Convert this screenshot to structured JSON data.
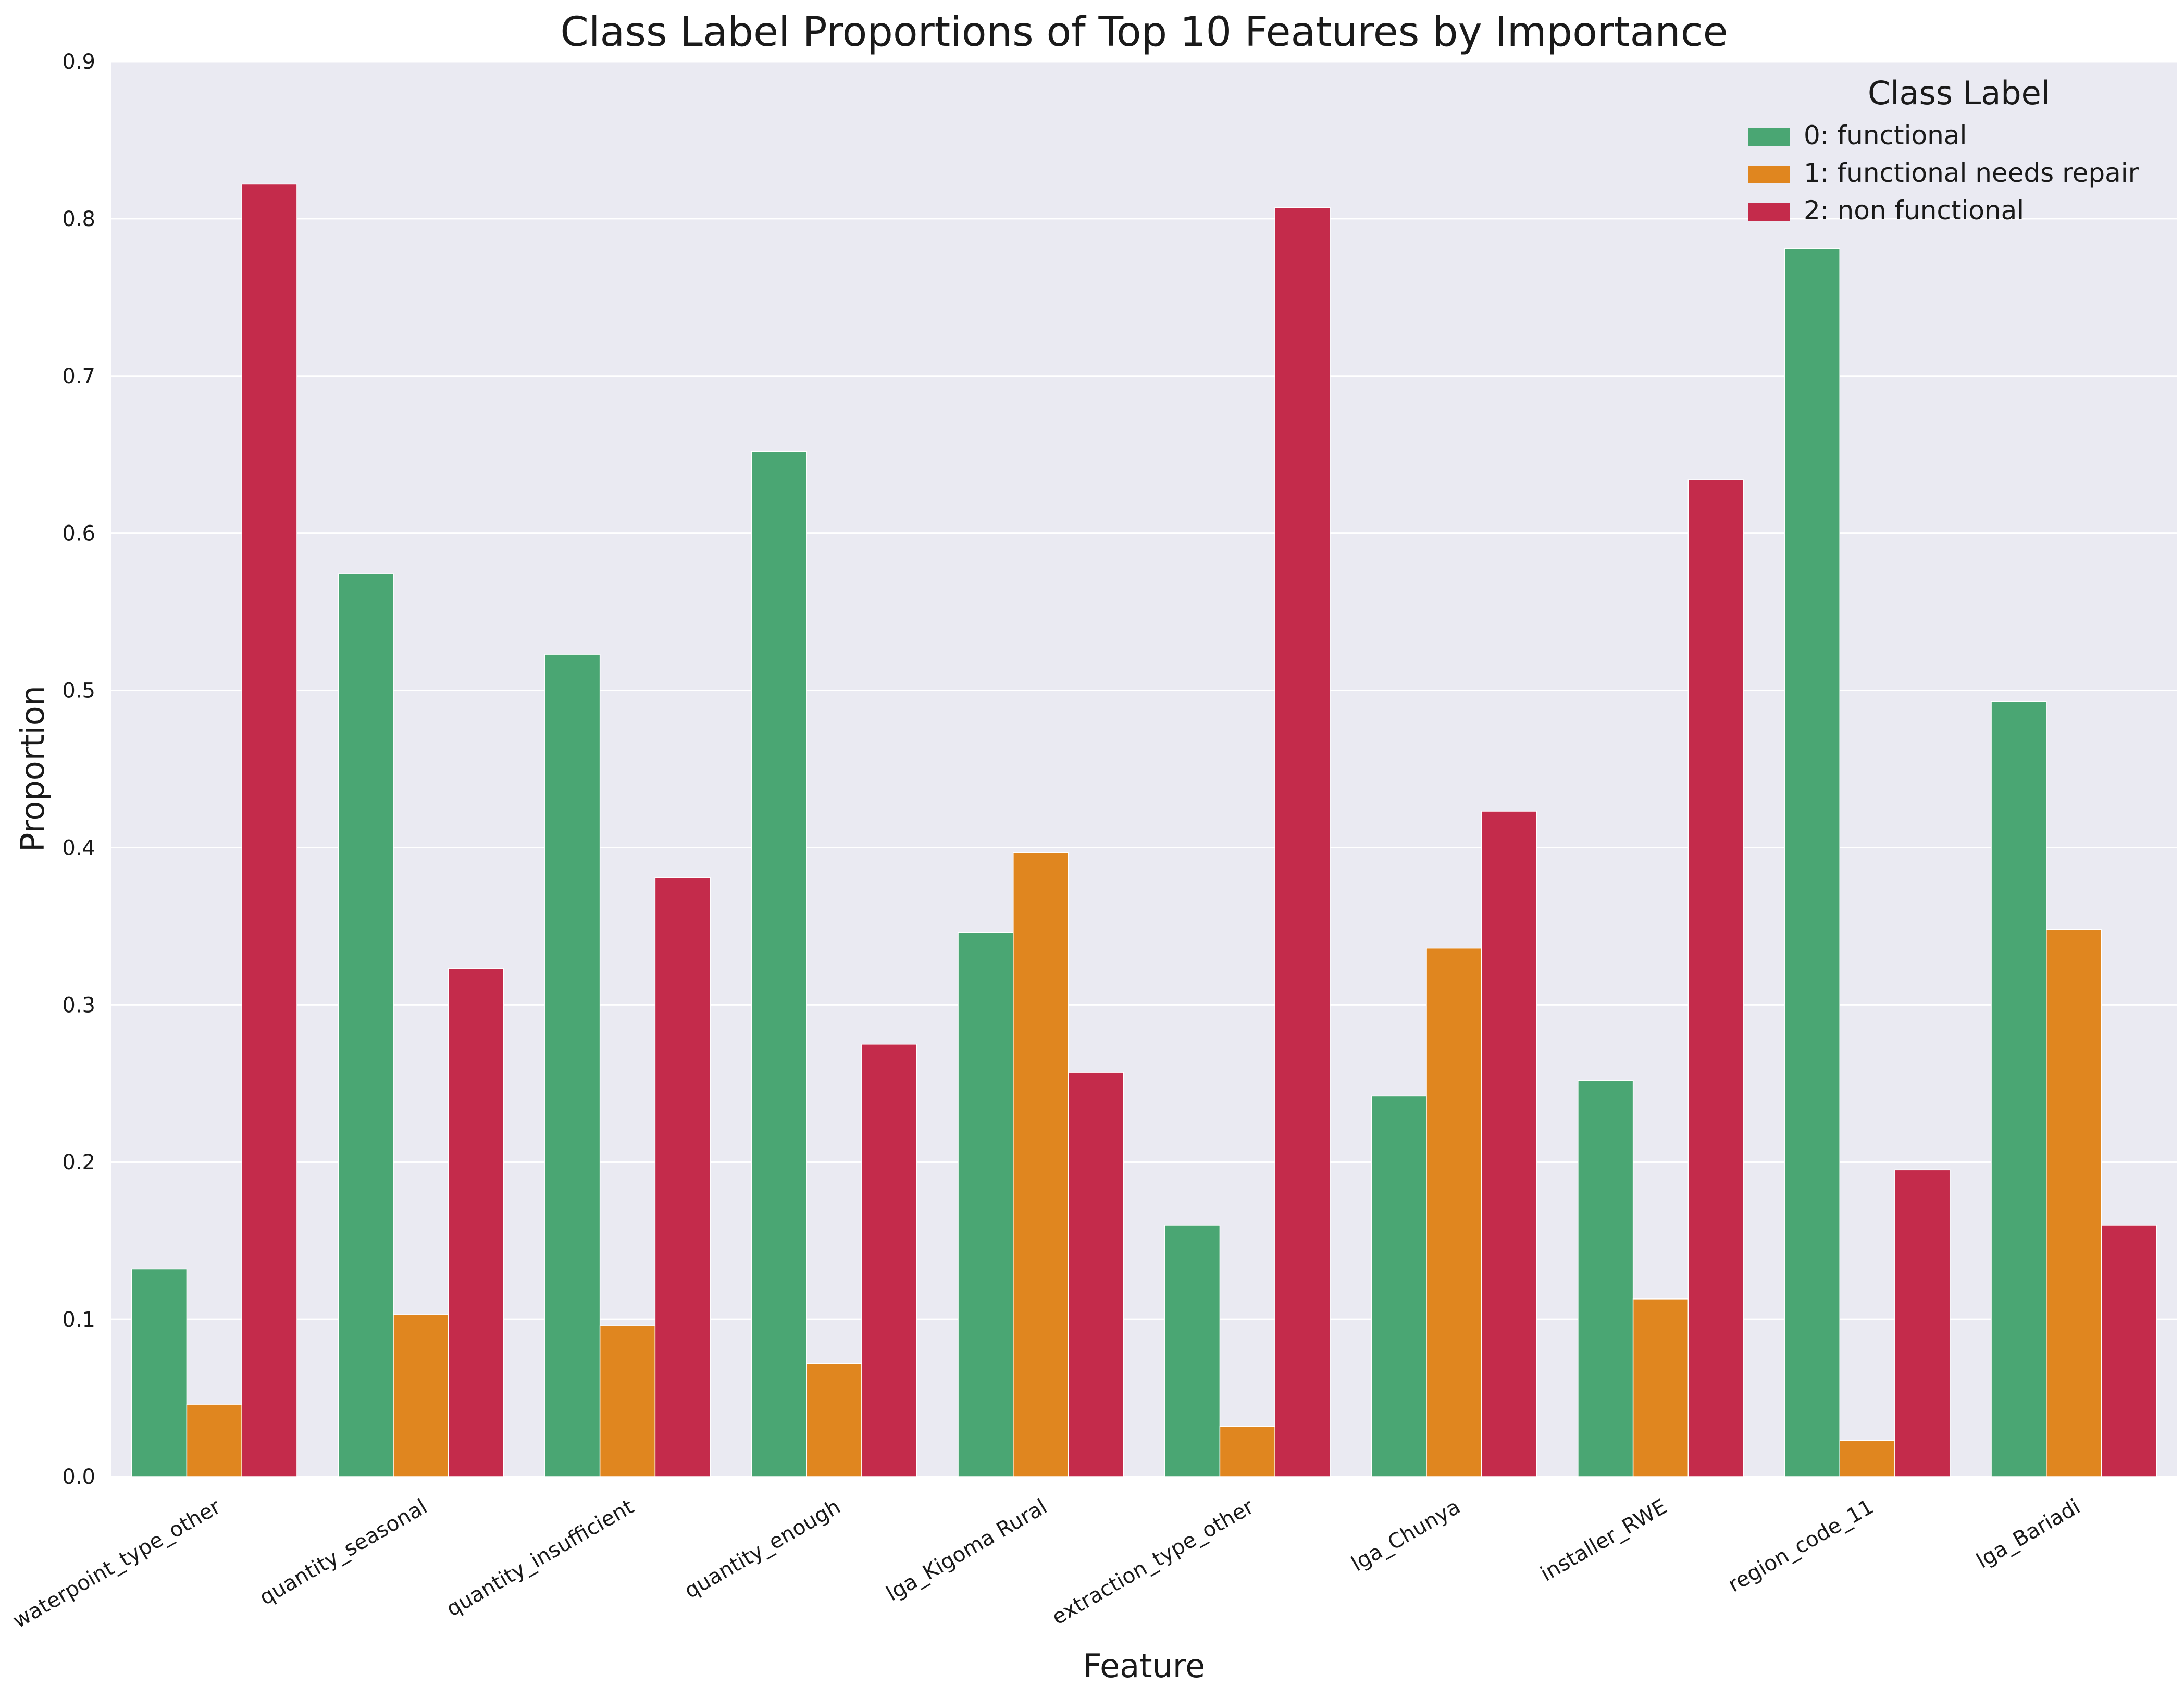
{
  "chart_data": {
    "type": "bar",
    "title": "Class Label Proportions of Top 10 Features by Importance",
    "xlabel": "Feature",
    "ylabel": "Proportion",
    "ylim": [
      0,
      0.9
    ],
    "yticks": [
      0.0,
      0.1,
      0.2,
      0.3,
      0.4,
      0.5,
      0.6,
      0.7,
      0.8,
      0.9
    ],
    "ytick_labels": [
      "0.0",
      "0.1",
      "0.2",
      "0.3",
      "0.4",
      "0.5",
      "0.6",
      "0.7",
      "0.8",
      "0.9"
    ],
    "grid": true,
    "legend": {
      "title": "Class Label",
      "placement": "top-right"
    },
    "categories": [
      "waterpoint_type_other",
      "quantity_seasonal",
      "quantity_insufficient",
      "quantity_enough",
      "lga_Kigoma Rural",
      "extraction_type_other",
      "lga_Chunya",
      "installer_RWE",
      "region_code_11",
      "lga_Bariadi"
    ],
    "series": [
      {
        "name": "0: functional",
        "color": "#4aa673",
        "values": [
          0.132,
          0.574,
          0.523,
          0.652,
          0.346,
          0.16,
          0.242,
          0.252,
          0.781,
          0.493
        ]
      },
      {
        "name": "1: functional needs repair",
        "color": "#e0861f",
        "values": [
          0.046,
          0.103,
          0.096,
          0.072,
          0.397,
          0.032,
          0.336,
          0.113,
          0.023,
          0.348
        ]
      },
      {
        "name": "2: non functional",
        "color": "#c42b4b",
        "values": [
          0.822,
          0.323,
          0.381,
          0.275,
          0.257,
          0.807,
          0.423,
          0.634,
          0.195,
          0.16
        ]
      }
    ]
  }
}
